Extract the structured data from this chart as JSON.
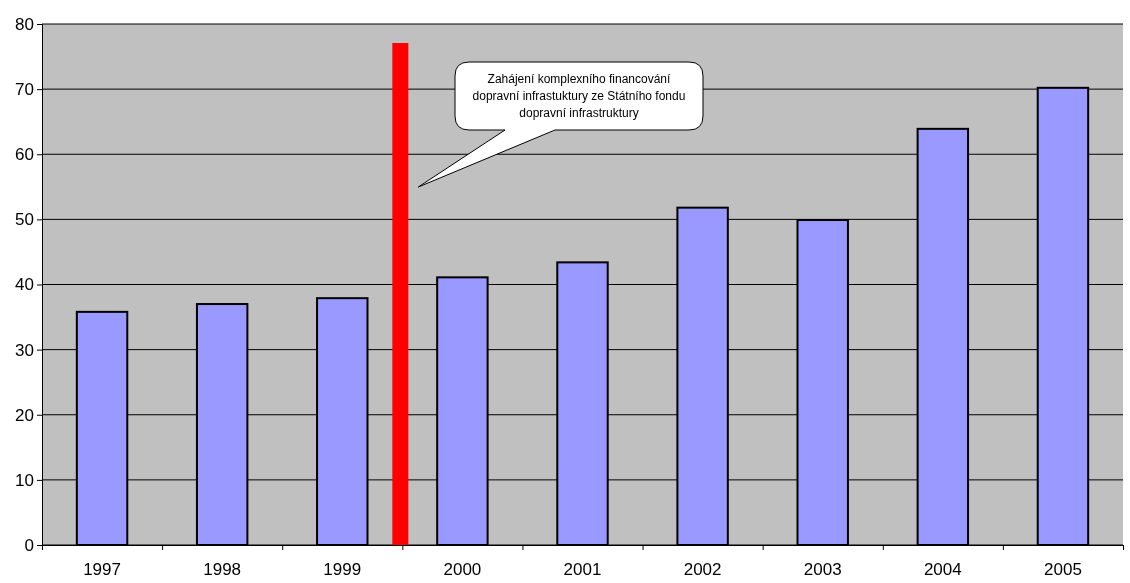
{
  "chart_data": {
    "type": "bar",
    "categories": [
      "1997",
      "1998",
      "1999",
      "2000",
      "2001",
      "2002",
      "2003",
      "2004",
      "2005"
    ],
    "values": [
      35.8,
      37.0,
      37.9,
      41.1,
      43.4,
      51.8,
      49.9,
      63.9,
      70.2
    ],
    "color": "#9999ff",
    "ylim": [
      0,
      80
    ],
    "yticks": [
      0,
      10,
      20,
      30,
      40,
      50,
      60,
      70,
      80
    ],
    "grid": "y",
    "annotations": [
      "Zahájení komplexního financování dopravní infrastuktury ze Státního fondu dopravní infrastruktury"
    ],
    "ref_lines": [
      {
        "axis": "x",
        "value": "2000",
        "color": "#ff0000"
      }
    ]
  }
}
